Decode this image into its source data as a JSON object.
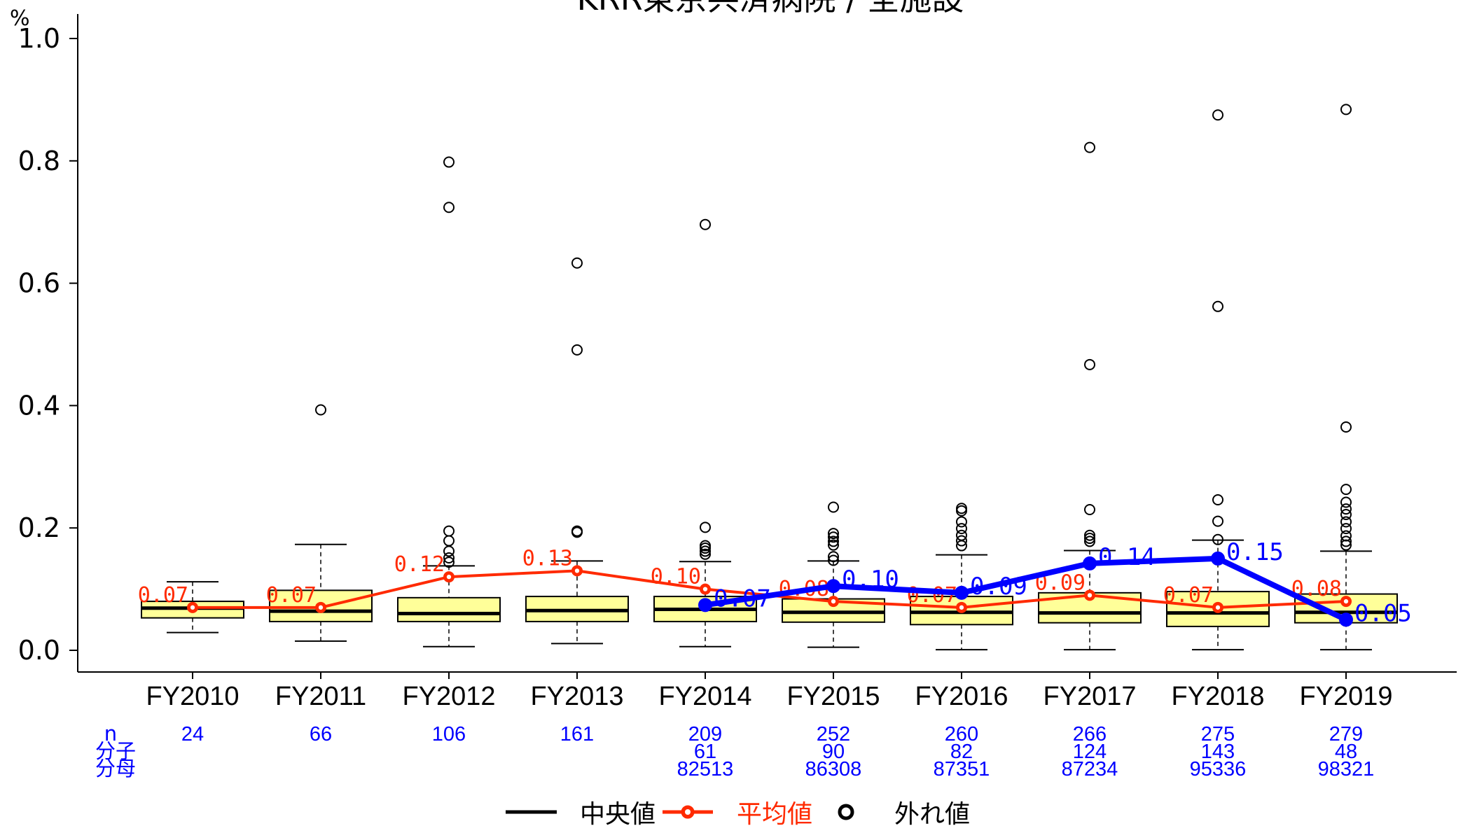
{
  "chart_data": {
    "type": "box",
    "title": "KRR東京共済病院 / 全施設",
    "ylabel": "%",
    "ylim": [
      0,
      1.0
    ],
    "yticks": [
      "0.0",
      "0.2",
      "0.4",
      "0.6",
      "0.8",
      "1.0"
    ],
    "categories": [
      "FY2010",
      "FY2011",
      "FY2012",
      "FY2013",
      "FY2014",
      "FY2015",
      "FY2016",
      "FY2017",
      "FY2018",
      "FY2019"
    ],
    "boxes": [
      {
        "whisker_low": 0.029,
        "q1": 0.053,
        "median": 0.069,
        "q3": 0.08,
        "whisker_high": 0.112,
        "outliers": []
      },
      {
        "whisker_low": 0.015,
        "q1": 0.047,
        "median": 0.064,
        "q3": 0.098,
        "whisker_high": 0.173,
        "outliers": [
          0.393
        ]
      },
      {
        "whisker_low": 0.006,
        "q1": 0.047,
        "median": 0.06,
        "q3": 0.086,
        "whisker_high": 0.138,
        "outliers": [
          0.144,
          0.151,
          0.162,
          0.179,
          0.195,
          0.724,
          0.798
        ]
      },
      {
        "whisker_low": 0.011,
        "q1": 0.047,
        "median": 0.065,
        "q3": 0.088,
        "whisker_high": 0.146,
        "outliers": [
          0.193,
          0.195,
          0.491,
          0.633
        ]
      },
      {
        "whisker_low": 0.006,
        "q1": 0.047,
        "median": 0.067,
        "q3": 0.088,
        "whisker_high": 0.145,
        "outliers": [
          0.157,
          0.162,
          0.167,
          0.171,
          0.201,
          0.696
        ]
      },
      {
        "whisker_low": 0.005,
        "q1": 0.046,
        "median": 0.062,
        "q3": 0.084,
        "whisker_high": 0.146,
        "outliers": [
          0.147,
          0.153,
          0.172,
          0.178,
          0.185,
          0.191,
          0.234
        ]
      },
      {
        "whisker_low": 0.001,
        "q1": 0.042,
        "median": 0.062,
        "q3": 0.088,
        "whisker_high": 0.156,
        "outliers": [
          0.171,
          0.179,
          0.188,
          0.199,
          0.21,
          0.228,
          0.232
        ]
      },
      {
        "whisker_low": 0.001,
        "q1": 0.045,
        "median": 0.061,
        "q3": 0.094,
        "whisker_high": 0.163,
        "outliers": [
          0.178,
          0.183,
          0.188,
          0.23,
          0.467,
          0.822
        ]
      },
      {
        "whisker_low": 0.001,
        "q1": 0.039,
        "median": 0.061,
        "q3": 0.096,
        "whisker_high": 0.18,
        "outliers": [
          0.181,
          0.211,
          0.246,
          0.562,
          0.875
        ]
      },
      {
        "whisker_low": 0.001,
        "q1": 0.045,
        "median": 0.062,
        "q3": 0.092,
        "whisker_high": 0.162,
        "outliers": [
          0.172,
          0.178,
          0.187,
          0.199,
          0.21,
          0.222,
          0.231,
          0.242,
          0.263,
          0.365,
          0.884
        ]
      }
    ],
    "series": [
      {
        "name": "平均値",
        "color": "#ff2a00",
        "values": [
          0.07,
          0.07,
          0.12,
          0.13,
          0.1,
          0.08,
          0.07,
          0.09,
          0.07,
          0.08
        ],
        "labels": [
          "0.07",
          "0.07",
          "0.12",
          "0.13",
          "0.10",
          "0.08",
          "0.07",
          "0.09",
          "0.07",
          "0.08"
        ]
      },
      {
        "color": "#0000ff",
        "values": [
          null,
          null,
          null,
          null,
          0.074,
          0.105,
          0.094,
          0.142,
          0.15,
          0.05
        ],
        "labels": [
          "",
          "",
          "",
          "",
          "0.07",
          "0.10",
          "0.09",
          "0.14",
          "0.15",
          "0.05"
        ]
      }
    ],
    "counts": {
      "row_labels": [
        "n",
        "分子",
        "分母"
      ],
      "n": [
        "24",
        "66",
        "106",
        "161",
        "209",
        "252",
        "260",
        "266",
        "275",
        "279"
      ],
      "numerator": [
        "",
        "",
        "",
        "",
        "61",
        "90",
        "82",
        "124",
        "143",
        "48"
      ],
      "denominator": [
        "",
        "",
        "",
        "",
        "82513",
        "86308",
        "87351",
        "87234",
        "95336",
        "98321"
      ]
    },
    "legend": {
      "position": "bottom",
      "items": [
        {
          "label": "中央値",
          "color": "#000000"
        },
        {
          "label": "平均値",
          "color": "#ff2a00"
        },
        {
          "label": "外れ値",
          "color": "#000000"
        }
      ]
    },
    "colors": {
      "box_fill": "#ffff99",
      "box_stroke": "#000000",
      "mean": "#ff2a00",
      "hospital": "#0000ff"
    }
  }
}
